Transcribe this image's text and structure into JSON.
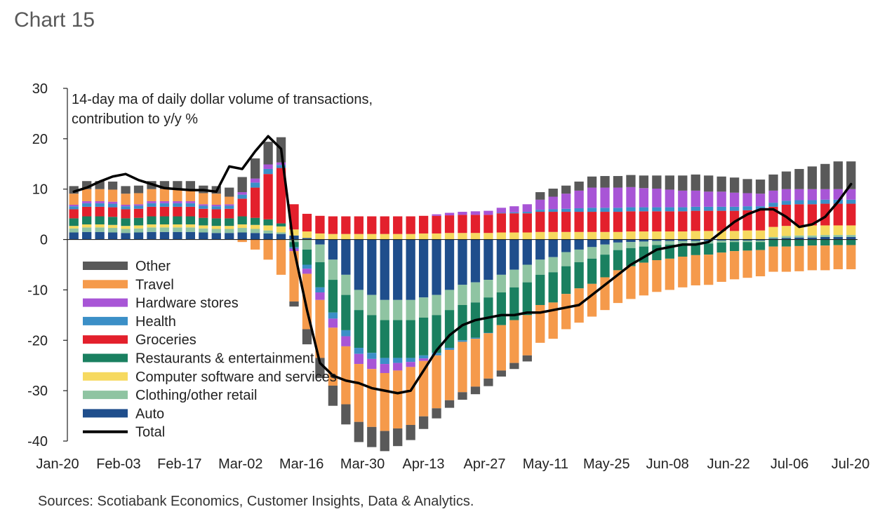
{
  "chart_title": "Chart 15",
  "note": "Sources: Scotiabank Economics, Customer Insights, Data & Analytics.",
  "chart_data": {
    "type": "bar",
    "stacked": true,
    "subtitle_lines": [
      "14-day ma of daily dollar volume of transactions,",
      "contribution to y/y %"
    ],
    "ylim": [
      -40,
      30
    ],
    "yticks": [
      30,
      20,
      10,
      0,
      -10,
      -20,
      -30,
      -40
    ],
    "x_tick_labels": [
      "Jan-20",
      "Feb-03",
      "Feb-17",
      "Mar-02",
      "Mar-16",
      "Mar-30",
      "Apr-13",
      "Apr-27",
      "May-11",
      "May-25",
      "Jun-08",
      "Jun-22",
      "Jul-06",
      "Jul-20"
    ],
    "legend_position": "lower-left",
    "series": [
      {
        "name": "Auto",
        "color": "#1f4e8c",
        "kind": "bar",
        "values": [
          1.4,
          1.5,
          1.5,
          1.4,
          1.3,
          1.4,
          1.5,
          1.5,
          1.5,
          1.5,
          1.4,
          1.3,
          1.3,
          1.4,
          1.3,
          1.2,
          1.1,
          0.8,
          0.3,
          -1,
          -4,
          -7,
          -10,
          -11,
          -12,
          -12,
          -12,
          -11.5,
          -11,
          -10,
          -9,
          -8.5,
          -8,
          -7,
          -6,
          -5,
          -4,
          -3.5,
          -2.5,
          -2,
          -1.5,
          -1,
          -0.6,
          -0.5,
          -0.4,
          -0.3,
          -0.3,
          -0.3,
          -0.3,
          -0.3,
          -0.2,
          -0.2,
          -0.2,
          -0.2,
          0.2,
          0.3,
          0.4,
          0.4,
          0.5,
          0.5,
          0.5
        ]
      },
      {
        "name": "Clothing/other retail",
        "color": "#8fc4a2",
        "kind": "bar",
        "values": [
          0.8,
          0.9,
          0.9,
          0.9,
          0.8,
          0.8,
          0.9,
          0.9,
          0.9,
          0.9,
          0.8,
          0.8,
          0.8,
          0.9,
          0.8,
          0.6,
          0.3,
          -0.5,
          -2,
          -3.5,
          -4,
          -4,
          -4,
          -4,
          -4,
          -4,
          -4,
          -4,
          -4,
          -4,
          -4,
          -4,
          -3.5,
          -3.5,
          -3.5,
          -3.5,
          -3,
          -3,
          -2.8,
          -2.5,
          -2.3,
          -2,
          -1.5,
          -1.2,
          -1,
          -0.8,
          -0.7,
          -0.6,
          -0.5,
          -0.5,
          -0.4,
          -0.3,
          -0.3,
          -0.3,
          0.3,
          0.4,
          0.4,
          0.4,
          0.4,
          0.4,
          0.4
        ]
      },
      {
        "name": "Computer software and services",
        "color": "#f6d95f",
        "kind": "bar",
        "values": [
          0.5,
          0.6,
          0.6,
          0.6,
          0.6,
          0.6,
          0.6,
          0.6,
          0.6,
          0.6,
          0.6,
          0.6,
          0.6,
          0.7,
          0.8,
          1.0,
          1.2,
          1.2,
          1.3,
          1.2,
          1.1,
          1.1,
          1.1,
          1.1,
          1.1,
          1.1,
          1.1,
          1.2,
          1.2,
          1.3,
          1.3,
          1.3,
          1.3,
          1.4,
          1.4,
          1.4,
          1.5,
          1.5,
          1.5,
          1.5,
          1.5,
          1.5,
          1.5,
          1.6,
          1.6,
          1.6,
          1.6,
          1.6,
          1.7,
          1.7,
          1.7,
          1.7,
          1.8,
          1.8,
          2.0,
          2.0,
          2.0,
          2.0,
          1.9,
          1.9,
          1.9
        ]
      },
      {
        "name": "Restaurants & entertainment",
        "color": "#1a8060",
        "kind": "bar",
        "values": [
          1.5,
          1.6,
          1.6,
          1.6,
          1.5,
          1.5,
          1.6,
          1.6,
          1.6,
          1.6,
          1.5,
          1.5,
          1.5,
          1.6,
          1.4,
          1.2,
          0.6,
          -1,
          -3,
          -5,
          -6.5,
          -7,
          -7.5,
          -7.5,
          -7.5,
          -7.5,
          -7.5,
          -7.5,
          -7.5,
          -7.5,
          -7,
          -7,
          -7,
          -6.5,
          -6.5,
          -6.5,
          -6,
          -6,
          -5.5,
          -5.2,
          -5,
          -4.5,
          -4,
          -3.6,
          -3.2,
          -3,
          -2.8,
          -2.5,
          -2.3,
          -2.2,
          -2,
          -1.8,
          -1.7,
          -1.6,
          -1.4,
          -1.4,
          -1.3,
          -1.2,
          -1.2,
          -1.1,
          -1.1
        ]
      },
      {
        "name": "Groceries",
        "color": "#e3202c",
        "kind": "bar",
        "values": [
          1.8,
          1.9,
          1.9,
          1.9,
          1.8,
          1.8,
          1.9,
          1.9,
          1.9,
          1.9,
          1.8,
          1.8,
          1.9,
          3.5,
          6,
          9,
          11,
          5,
          3.5,
          3.5,
          3.5,
          3.5,
          3.5,
          3.5,
          3.5,
          3.5,
          3.5,
          3.5,
          3.5,
          3.5,
          3.6,
          3.6,
          3.6,
          3.8,
          3.8,
          3.8,
          4,
          4,
          4,
          4,
          4,
          4,
          4,
          4,
          4,
          4,
          4,
          4,
          4,
          4,
          4,
          4,
          4,
          4,
          4,
          4.2,
          4.2,
          4.2,
          4.3,
          4.3,
          4.3
        ]
      },
      {
        "name": "Health",
        "color": "#3b8fc7",
        "kind": "bar",
        "values": [
          0.6,
          0.7,
          0.7,
          0.7,
          0.6,
          0.6,
          0.7,
          0.7,
          0.7,
          0.7,
          0.6,
          0.6,
          0.6,
          0.8,
          1.0,
          1.0,
          0.6,
          -0.3,
          -0.8,
          -1,
          -1.2,
          -1.2,
          -1.2,
          -1.2,
          -1.2,
          -1.0,
          -0.8,
          -0.6,
          -0.5,
          -0.4,
          -0.3,
          -0.2,
          -0.1,
          0.1,
          0.2,
          0.3,
          0.4,
          0.5,
          0.6,
          0.7,
          0.8,
          0.8,
          0.8,
          0.8,
          0.8,
          0.8,
          0.8,
          0.8,
          0.8,
          0.8,
          0.8,
          0.8,
          0.8,
          0.8,
          0.8,
          0.8,
          0.8,
          0.8,
          0.8,
          0.8,
          0.8
        ]
      },
      {
        "name": "Hardware stores",
        "color": "#a855d6",
        "kind": "bar",
        "values": [
          0.3,
          0.4,
          0.4,
          0.4,
          0.3,
          0.3,
          0.4,
          0.4,
          0.4,
          0.4,
          0.3,
          0.3,
          0.3,
          0.5,
          0.8,
          0.9,
          0.5,
          -0.5,
          -1,
          -1.5,
          -1.8,
          -2,
          -2,
          -2,
          -1.8,
          -1.5,
          -1,
          -0.5,
          0.3,
          0.5,
          0.6,
          0.7,
          0.8,
          1.0,
          1.2,
          1.5,
          2,
          2.5,
          3,
          3.5,
          4,
          4,
          4,
          4,
          3.8,
          3.7,
          3.5,
          3.3,
          3.2,
          3.0,
          3.0,
          2.8,
          2.6,
          2.5,
          2.4,
          2.3,
          2.2,
          2.2,
          2.1,
          2.1,
          2.1
        ]
      },
      {
        "name": "Travel",
        "color": "#f59a4b",
        "kind": "bar",
        "values": [
          2.2,
          2.4,
          2.4,
          2.4,
          2.2,
          2.2,
          2.4,
          2.4,
          2.4,
          2.4,
          2.2,
          2.2,
          1.5,
          -0.5,
          -2,
          -4,
          -7,
          -10,
          -11,
          -11.5,
          -11.5,
          -11.5,
          -11.5,
          -11.5,
          -11.5,
          -11.5,
          -11.5,
          -11,
          -10.5,
          -10,
          -10,
          -9.5,
          -9,
          -9,
          -8.5,
          -8,
          -7.5,
          -7.2,
          -7,
          -6.8,
          -6.5,
          -6.5,
          -6.5,
          -6.5,
          -6.5,
          -6.3,
          -6.2,
          -6.1,
          -6,
          -6,
          -5.8,
          -5.6,
          -5.4,
          -5.2,
          -5,
          -5,
          -5,
          -4.9,
          -4.9,
          -4.8,
          -4.8
        ]
      },
      {
        "name": "Other",
        "color": "#595959",
        "kind": "bar",
        "values": [
          1.5,
          1.6,
          1.6,
          1.6,
          1.5,
          1.5,
          1.6,
          1.6,
          1.6,
          1.6,
          1.5,
          1.5,
          1.8,
          3,
          4,
          4.5,
          5,
          -1,
          -3,
          -4,
          -4,
          -4,
          -4,
          -4,
          -4,
          -3.5,
          -3,
          -2.5,
          -2,
          -1.5,
          -1.5,
          -1.5,
          -1.5,
          -1.2,
          -1.2,
          -1.2,
          1.5,
          1.6,
          1.6,
          1.8,
          2.2,
          2.3,
          2.3,
          2.4,
          2.5,
          2.6,
          2.8,
          3,
          3.2,
          3.2,
          3.0,
          3.0,
          2.8,
          2.8,
          3.2,
          3.5,
          4,
          4.5,
          5,
          5.5,
          5.5
        ]
      },
      {
        "name": "Total",
        "color": "#000000",
        "kind": "line",
        "values": [
          9.5,
          10.3,
          11.5,
          12.5,
          13.0,
          11.8,
          11.0,
          10.2,
          10.0,
          9.8,
          9.8,
          9.5,
          14.5,
          14.0,
          17.5,
          20.5,
          18.0,
          -2.0,
          -14.0,
          -24.5,
          -27.0,
          -28.0,
          -28.5,
          -29.5,
          -30.0,
          -30.5,
          -30.0,
          -26.0,
          -22.0,
          -19.0,
          -17.0,
          -16.0,
          -15.5,
          -15.0,
          -15.0,
          -14.5,
          -14.5,
          -14.0,
          -13.5,
          -13.0,
          -11.0,
          -9.0,
          -7.0,
          -5.0,
          -3.5,
          -2.0,
          -1.5,
          -1.0,
          -1.0,
          -0.5,
          1.5,
          3.5,
          5.0,
          6.0,
          6.0,
          4.5,
          2.5,
          3.0,
          4.5,
          7.5,
          11.0
        ]
      }
    ]
  }
}
